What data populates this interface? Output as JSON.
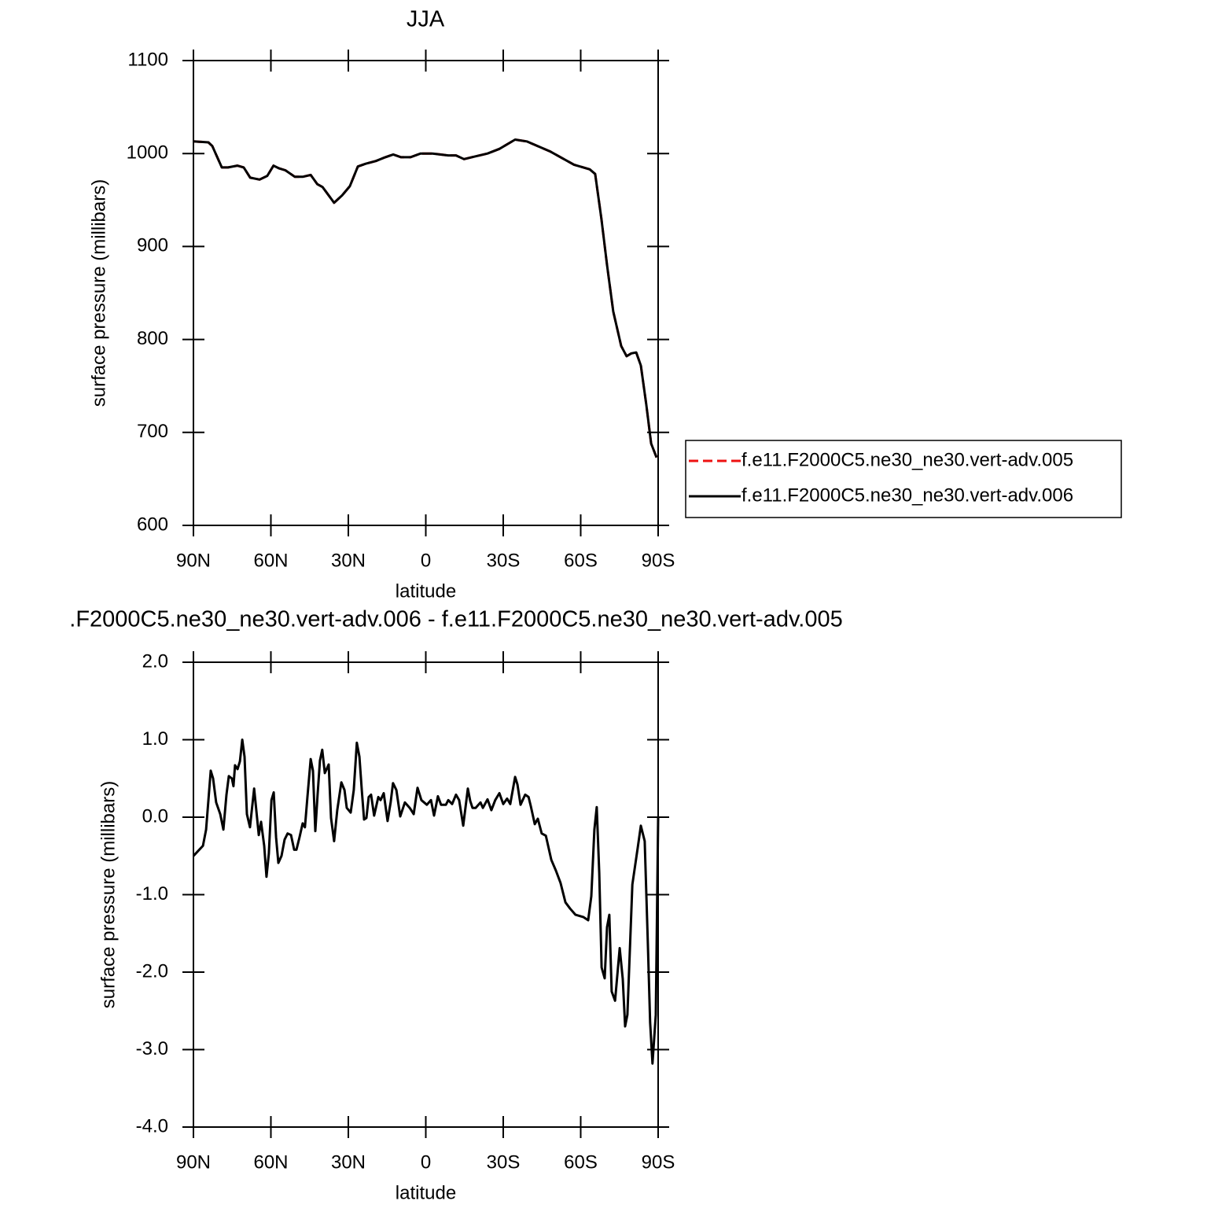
{
  "chart_data": [
    {
      "type": "line",
      "title": "JJA",
      "x_label": "latitude",
      "y_label": "surface pressure (millibars)",
      "xlim": [
        90,
        -90
      ],
      "xticks": [
        {
          "value": 90,
          "label": "90N"
        },
        {
          "value": 60,
          "label": "60N"
        },
        {
          "value": 30,
          "label": "30N"
        },
        0,
        {
          "value": -30,
          "label": "30S"
        },
        {
          "value": -60,
          "label": "60S"
        },
        {
          "value": -90,
          "label": "90S"
        }
      ],
      "ylim": [
        600,
        1100
      ],
      "yticks": [
        600,
        700,
        800,
        900,
        1000,
        1100
      ],
      "legend": "right",
      "x": [
        90,
        84.2,
        82.7,
        79,
        76.6,
        73,
        70.5,
        68,
        64.4,
        61.4,
        59,
        56.8,
        54.4,
        50.7,
        47.7,
        44.6,
        42,
        40,
        35.5,
        32.4,
        29.4,
        26.3,
        23.3,
        19.3,
        15.7,
        12.6,
        9.6,
        5.9,
        2,
        -2.6,
        -8.7,
        -11.7,
        -14.8,
        -17.8,
        -23.9,
        -28.5,
        -34.6,
        -39.1,
        -48.3,
        -57.4,
        -63.5,
        -65.6,
        -68,
        -70.2,
        -72.6,
        -75.7,
        -77.8,
        -79.6,
        -81.5,
        -83.3,
        -85.4,
        -87.3,
        -89.4
      ],
      "series": [
        {
          "name": "f.e11.F2000C5.ne30_ne30.vert-adv.005",
          "color": "#ee1111",
          "linestyle": "dashed",
          "values": [
            1013,
            1012,
            1008,
            985,
            985,
            987,
            985,
            974,
            972,
            976,
            987,
            984,
            982,
            975,
            975,
            977,
            967,
            964,
            947,
            955,
            965,
            986,
            989,
            992,
            996,
            999,
            996,
            996,
            1000,
            1000,
            998,
            998,
            994,
            996,
            1000,
            1005,
            1015,
            1013,
            1002,
            988,
            983,
            978,
            930,
            880,
            830,
            793,
            782,
            785,
            786,
            772,
            730,
            688,
            673
          ]
        },
        {
          "name": "f.e11.F2000C5.ne30_ne30.vert-adv.006",
          "color": "#000000",
          "linestyle": "solid",
          "values": [
            1013,
            1012,
            1008,
            985,
            985,
            987,
            985,
            974,
            972,
            976,
            987,
            984,
            982,
            975,
            975,
            977,
            967,
            964,
            947,
            955,
            965,
            986,
            989,
            992,
            996,
            999,
            996,
            996,
            1000,
            1000,
            998,
            998,
            994,
            996,
            1000,
            1005,
            1015,
            1013,
            1002,
            988,
            983,
            978,
            930,
            880,
            830,
            793,
            782,
            785,
            786,
            772,
            730,
            688,
            673
          ]
        }
      ]
    },
    {
      "type": "line",
      "title": ".F2000C5.ne30_ne30.vert-adv.006 - f.e11.F2000C5.ne30_ne30.vert-adv.005",
      "x_label": "latitude",
      "y_label": "surface pressure (millibars)",
      "xlim": [
        90,
        -90
      ],
      "xticks": [
        {
          "value": 90,
          "label": "90N"
        },
        {
          "value": 60,
          "label": "60N"
        },
        {
          "value": 30,
          "label": "30N"
        },
        0,
        {
          "value": -30,
          "label": "30S"
        },
        {
          "value": -60,
          "label": "60S"
        },
        {
          "value": -90,
          "label": "90S"
        }
      ],
      "ylim": [
        -4,
        2
      ],
      "yticks": [
        {
          "value": -4,
          "label": "-4.0"
        },
        {
          "value": -3,
          "label": "-3.0"
        },
        {
          "value": -2,
          "label": "-2.0"
        },
        {
          "value": -1,
          "label": "-1.0"
        },
        {
          "value": 0,
          "label": "0.0"
        },
        {
          "value": 1,
          "label": "1.0"
        },
        {
          "value": 2,
          "label": "2.0"
        }
      ],
      "x": [
        90,
        86.3,
        85.1,
        83.3,
        82.4,
        81.2,
        79.6,
        78.4,
        77.2,
        76.3,
        75.1,
        74.5,
        73.9,
        72.9,
        72.0,
        71.1,
        70.2,
        69.3,
        68.1,
        66.5,
        64.7,
        63.8,
        62.6,
        61.7,
        60.8,
        59.8,
        58.9,
        58.0,
        57.1,
        55.9,
        54.7,
        53.5,
        52.2,
        51.0,
        50.1,
        48.9,
        47.7,
        46.8,
        45.9,
        44.6,
        43.7,
        42.8,
        41.9,
        41.0,
        40.1,
        39.1,
        37.6,
        36.7,
        35.5,
        34.3,
        32.7,
        31.5,
        30.6,
        29.1,
        27.9,
        26.7,
        25.7,
        24.8,
        23.9,
        23.0,
        22.1,
        21.2,
        20.0,
        18.4,
        17.5,
        16.3,
        14.8,
        13.6,
        12.7,
        11.4,
        9.9,
        8.1,
        6.2,
        4.7,
        3.2,
        1.7,
        -0.4,
        -2.0,
        -3.2,
        -4.7,
        -5.9,
        -7.8,
        -8.7,
        -10.2,
        -11.7,
        -12.9,
        -14.5,
        -16.3,
        -17.2,
        -18.1,
        -19.3,
        -21.2,
        -22.1,
        -23.9,
        -25.4,
        -26.9,
        -28.5,
        -30.0,
        -31.5,
        -32.7,
        -34.6,
        -35.5,
        -36.7,
        -38.5,
        -39.8,
        -40.7,
        -42.2,
        -43.4,
        -44.9,
        -46.5,
        -48.6,
        -50.4,
        -52.2,
        -54.1,
        -55.9,
        -58.0,
        -61.1,
        -62.9,
        -64.1,
        -65.3,
        -66.2,
        -67.2,
        -68.1,
        -69.3,
        -70.2,
        -71.1,
        -72.0,
        -73.3,
        -75.1,
        -76.3,
        -77.2,
        -78.1,
        -80.0,
        -82.1,
        -83.3,
        -84.8,
        -86.0,
        -86.9,
        -87.8,
        -89.1,
        -90
      ],
      "series": [
        {
          "color": "#000000",
          "linestyle": "solid",
          "values": [
            -0.5,
            -0.37,
            -0.16,
            0.6,
            0.5,
            0.19,
            0.04,
            -0.16,
            0.29,
            0.53,
            0.5,
            0.4,
            0.67,
            0.62,
            0.72,
            1.0,
            0.78,
            0.04,
            -0.13,
            0.37,
            -0.23,
            -0.06,
            -0.37,
            -0.77,
            -0.47,
            0.22,
            0.32,
            -0.26,
            -0.59,
            -0.5,
            -0.29,
            -0.21,
            -0.23,
            -0.42,
            -0.42,
            -0.26,
            -0.08,
            -0.13,
            0.24,
            0.75,
            0.6,
            -0.18,
            0.29,
            0.73,
            0.87,
            0.57,
            0.68,
            -0.01,
            -0.31,
            0.09,
            0.45,
            0.35,
            0.12,
            0.06,
            0.35,
            0.96,
            0.78,
            0.35,
            -0.03,
            -0.01,
            0.26,
            0.29,
            0.02,
            0.26,
            0.22,
            0.31,
            -0.05,
            0.19,
            0.44,
            0.35,
            0.01,
            0.19,
            0.12,
            0.04,
            0.38,
            0.22,
            0.16,
            0.22,
            0.02,
            0.27,
            0.16,
            0.16,
            0.22,
            0.17,
            0.29,
            0.22,
            -0.11,
            0.37,
            0.21,
            0.12,
            0.12,
            0.19,
            0.12,
            0.23,
            0.09,
            0.22,
            0.31,
            0.17,
            0.24,
            0.17,
            0.52,
            0.42,
            0.16,
            0.29,
            0.26,
            0.14,
            -0.09,
            -0.02,
            -0.21,
            -0.24,
            -0.55,
            -0.69,
            -0.85,
            -1.1,
            -1.18,
            -1.26,
            -1.29,
            -1.33,
            -1.02,
            -0.16,
            0.13,
            -0.72,
            -1.94,
            -2.08,
            -1.42,
            -1.26,
            -2.25,
            -2.37,
            -1.69,
            -2.09,
            -2.7,
            -2.55,
            -0.87,
            -0.39,
            -0.11,
            -0.31,
            -1.63,
            -2.65,
            -3.18,
            -2.55,
            -0.01
          ]
        }
      ]
    }
  ]
}
